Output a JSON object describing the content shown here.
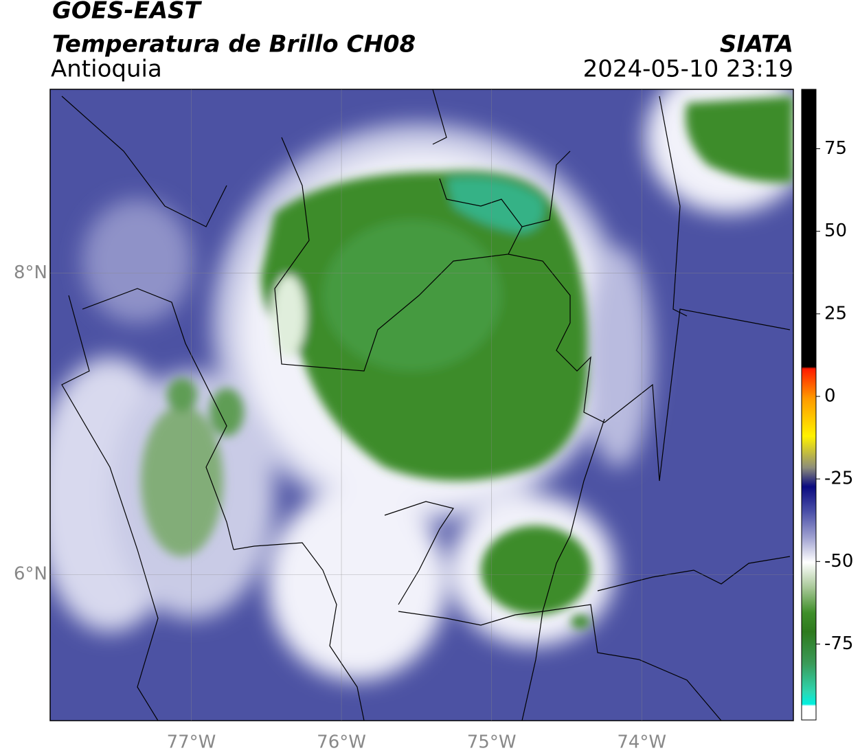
{
  "header": {
    "source": "GOES-EAST",
    "title": "Temperatura de Brillo CH08",
    "region": "Antioquia",
    "agency": "SIATA",
    "datetime": "2024-05-10 23:19"
  },
  "map": {
    "xlim": [
      -77.94,
      -72.99
    ],
    "ylim": [
      5.03,
      9.22
    ],
    "xticks": [
      {
        "value": -77,
        "label": "77°W"
      },
      {
        "value": -76,
        "label": "76°W"
      },
      {
        "value": -75,
        "label": "75°W"
      },
      {
        "value": -74,
        "label": "74°W"
      }
    ],
    "yticks": [
      {
        "value": 6,
        "label": "6°N"
      },
      {
        "value": 8,
        "label": "8°N"
      }
    ],
    "grid": true
  },
  "colorbar": {
    "lim": [
      -98,
      93
    ],
    "ticks": [
      75,
      50,
      25,
      0,
      -25,
      -50,
      -75
    ]
  }
}
